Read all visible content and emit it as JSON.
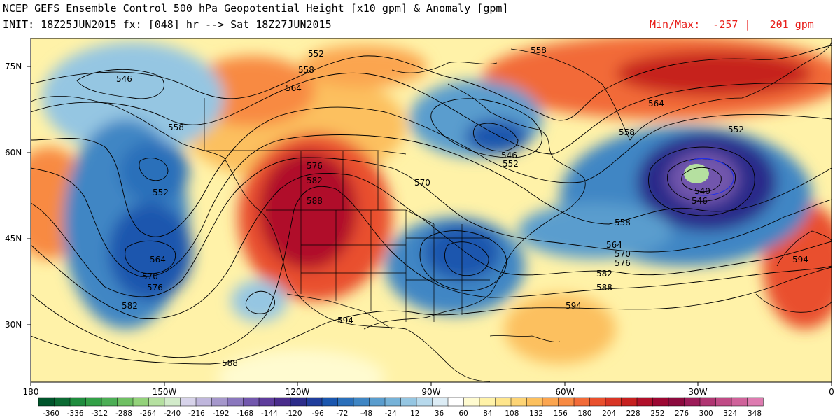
{
  "header": {
    "title_line1": "NCEP GEFS Ensemble Control 500 hPa Geopotential Height [x10 gpm] & Anomaly [gpm]",
    "title_line2": "INIT: 18Z25JUN2015 fx: [048] hr --> Sat 18Z27JUN2015",
    "minmax": "Min/Max:  -257 |   201 gpm"
  },
  "map": {
    "region": "North Pacific - North America - North Atlantic",
    "lat_labels": [
      "75N",
      "60N",
      "45N",
      "30N"
    ],
    "lon_labels": [
      "180",
      "150W",
      "120W",
      "90W",
      "60W",
      "30W",
      "0"
    ],
    "height_contour_labels": [
      "546",
      "552",
      "558",
      "564",
      "570",
      "576",
      "582",
      "588",
      "594",
      "540",
      "546",
      "552",
      "558",
      "564",
      "570",
      "576",
      "582",
      "588",
      "594"
    ],
    "features": [
      {
        "name": "Gulf of Alaska trough",
        "anomaly_color": "#2f6cb5"
      },
      {
        "name": "Pacific Northwest ridge",
        "anomaly_color": "#a5093f"
      },
      {
        "name": "Hudson Bay trough",
        "anomaly_color": "#3a7bc2"
      },
      {
        "name": "Great Lakes trough",
        "anomaly_color": "#1f5fa8"
      },
      {
        "name": "Greenland ridge",
        "anomaly_color": "#c0152f"
      },
      {
        "name": "North Atlantic low",
        "anomaly_color": "#5c2d91",
        "center_value": "540"
      }
    ]
  },
  "colorbar": {
    "tick_labels": [
      "-360",
      "-336",
      "-312",
      "-288",
      "-264",
      "-240",
      "-216",
      "-192",
      "-168",
      "-144",
      "-120",
      "-96",
      "-72",
      "-48",
      "-24",
      "12",
      "36",
      "60",
      "84",
      "108",
      "132",
      "156",
      "180",
      "204",
      "228",
      "252",
      "276",
      "300",
      "324",
      "348"
    ],
    "colors": [
      "#00542b",
      "#0c6b33",
      "#1f8c3d",
      "#33a047",
      "#4cae55",
      "#6fc063",
      "#93d27a",
      "#b5e0a0",
      "#d2ebca",
      "#d7d3ea",
      "#bfb6dc",
      "#a597cb",
      "#8a77bd",
      "#7257ad",
      "#5e3c9c",
      "#4a2c8c",
      "#2c2c8a",
      "#203d9c",
      "#1a56ae",
      "#2a6fba",
      "#3f86c4",
      "#5a9dce",
      "#76b2d8",
      "#95c6e2",
      "#b7d9ec",
      "#dcecf5",
      "#ffffff",
      "#fffbd0",
      "#fff2a8",
      "#fee58c",
      "#fdd475",
      "#fcc05e",
      "#fba54f",
      "#f88a43",
      "#f26b38",
      "#e9502d",
      "#d83525",
      "#c6201f",
      "#b0102a",
      "#9c0732",
      "#8c0a3e",
      "#9c1b58",
      "#b03572",
      "#c04b86",
      "#cf629a",
      "#dd7bb0"
    ]
  }
}
